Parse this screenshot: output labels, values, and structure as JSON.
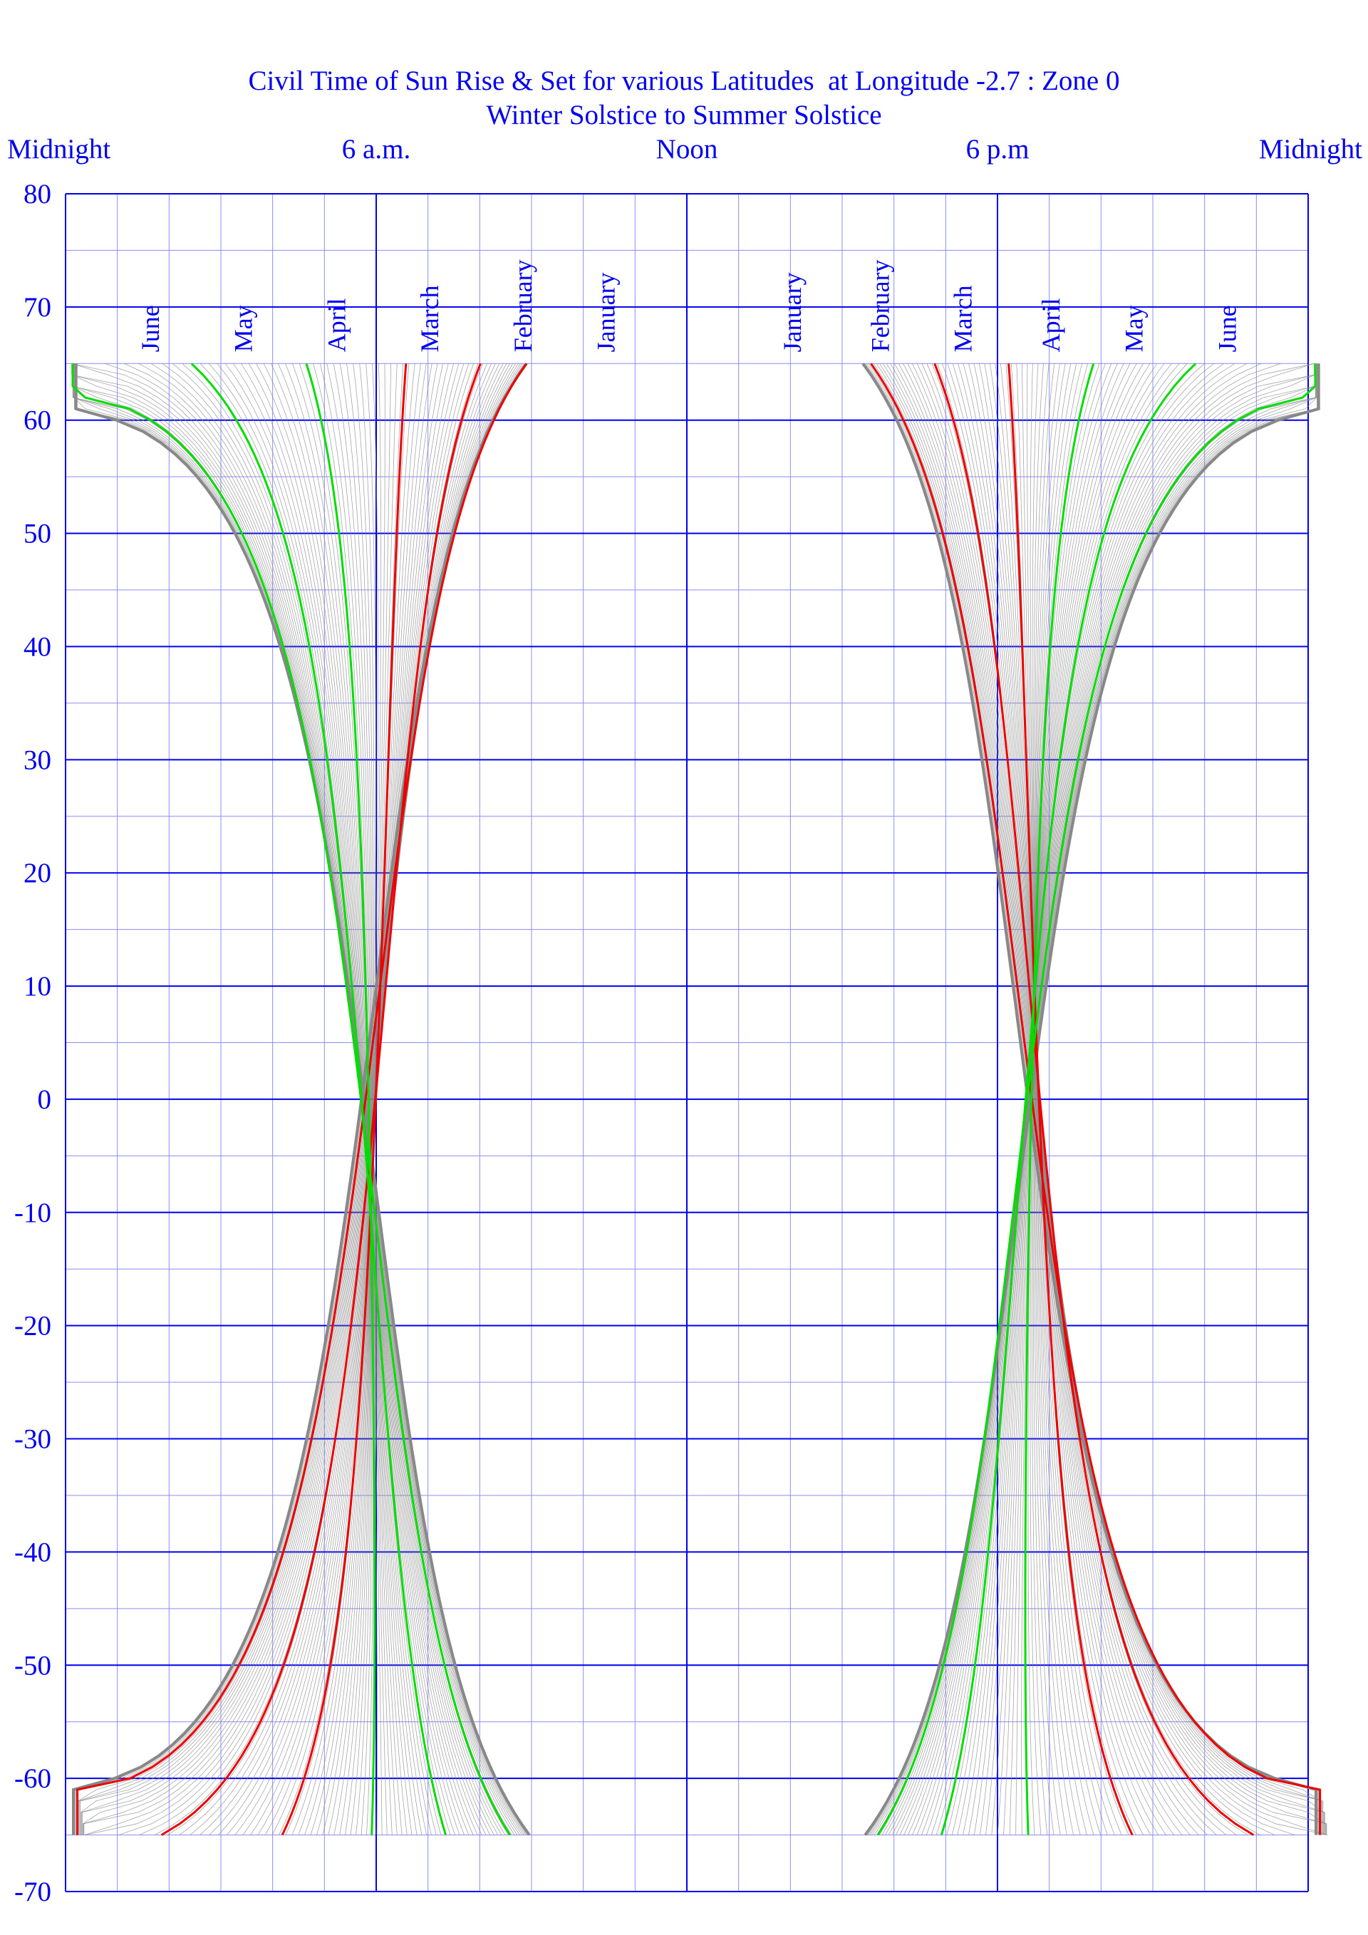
{
  "chart_data": {
    "type": "line",
    "title": "Civil Time of Sun Rise & Set for various Latitudes  at Longitude -2.7 : Zone 0",
    "subtitle": "Winter Solstice to Summer Solstice",
    "x_ticks": [
      {
        "hour": 0,
        "label": "Midnight"
      },
      {
        "hour": 6,
        "label": "6 a.m."
      },
      {
        "hour": 12,
        "label": "Noon"
      },
      {
        "hour": 18,
        "label": "6 p.m"
      },
      {
        "hour": 24,
        "label": "Midnight"
      }
    ],
    "y_ticks": [
      {
        "value": 80,
        "label": "80"
      },
      {
        "value": 70,
        "label": "70"
      },
      {
        "value": 60,
        "label": "60"
      },
      {
        "value": 50,
        "label": "50"
      },
      {
        "value": 40,
        "label": "40"
      },
      {
        "value": 30,
        "label": "30"
      },
      {
        "value": 20,
        "label": "20"
      },
      {
        "value": 10,
        "label": "10"
      },
      {
        "value": 0,
        "label": "0"
      },
      {
        "value": -10,
        "label": "-10"
      },
      {
        "value": -20,
        "label": "-20"
      },
      {
        "value": -30,
        "label": "-30"
      },
      {
        "value": -40,
        "label": "-40"
      },
      {
        "value": -50,
        "label": "-50"
      },
      {
        "value": -60,
        "label": "-60"
      },
      {
        "value": -70,
        "label": "-70"
      }
    ],
    "xlim": [
      0,
      24
    ],
    "ylim": [
      -70,
      80
    ],
    "latitude_range": [
      -65,
      65
    ],
    "grid": {
      "major_x_hours": 6,
      "minor_x_hours": 1,
      "major_y": 10,
      "minor_y": 5
    },
    "longitude": -2.7,
    "time_zone": 0,
    "sunrise_labels": [
      {
        "label": "June",
        "hour": 1.8
      },
      {
        "label": "May",
        "hour": 3.6
      },
      {
        "label": "April",
        "hour": 5.4
      },
      {
        "label": "March",
        "hour": 7.2
      },
      {
        "label": "February",
        "hour": 9.0
      },
      {
        "label": "January",
        "hour": 10.6
      }
    ],
    "sunset_labels": [
      {
        "label": "January",
        "hour": 14.2
      },
      {
        "label": "February",
        "hour": 15.9
      },
      {
        "label": "March",
        "hour": 17.5
      },
      {
        "label": "April",
        "hour": 19.2
      },
      {
        "label": "May",
        "hour": 20.8
      },
      {
        "label": "June",
        "hour": 22.6
      }
    ],
    "highlighted_dates": [
      {
        "month": "January",
        "day_of_year": 1,
        "color": "#ee0000"
      },
      {
        "month": "February",
        "day_of_year": 32,
        "color": "#ee0000"
      },
      {
        "month": "March",
        "day_of_year": 60,
        "color": "#ee0000"
      },
      {
        "month": "April",
        "day_of_year": 91,
        "color": "#00dd00"
      },
      {
        "month": "May",
        "day_of_year": 121,
        "color": "#00dd00"
      },
      {
        "month": "June",
        "day_of_year": 152,
        "color": "#00dd00"
      }
    ],
    "background_curves": {
      "from_day_of_year": 356,
      "to_day_of_year": 538,
      "step_days": 2,
      "color": "#888888"
    },
    "colors": {
      "text": "#0000ee",
      "grid_major": "#0000ee",
      "grid_minor": "#8c8cf5",
      "winter_months": "#ee0000",
      "spring_months": "#00dd00",
      "envelope": "#888888"
    }
  }
}
